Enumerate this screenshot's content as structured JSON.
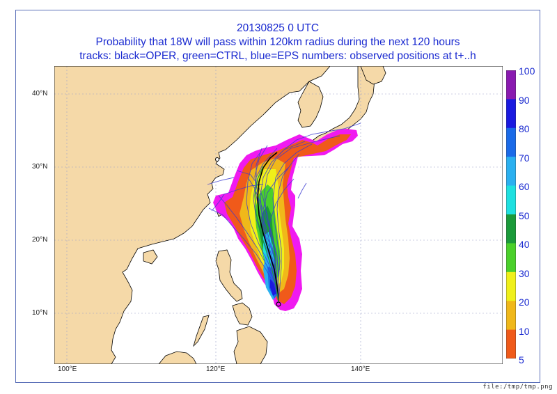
{
  "title": {
    "line1": "20130825 0 UTC",
    "line2": "Probability that 18W will pass within 120km radius during the next 120 hours",
    "line3": "tracks: black=OPER, green=CTRL, blue=EPS numbers: observed positions at t+..h"
  },
  "latitude_labels": [
    "40°N",
    "30°N",
    "20°N",
    "10°N"
  ],
  "longitude_labels": [
    "100°E",
    "120°E",
    "140°E"
  ],
  "colorbar": {
    "labels": [
      "100",
      "90",
      "80",
      "70",
      "60",
      "50",
      "40",
      "30",
      "20",
      "10",
      "5"
    ],
    "colors": [
      "#8a1ab0",
      "#1a1ae0",
      "#1a6ae8",
      "#2ab0f0",
      "#1ee0e0",
      "#1a9a3a",
      "#4ad02a",
      "#f0f01a",
      "#f0b81a",
      "#f05a1a",
      "#f01af0"
    ]
  },
  "colors": {
    "land": "#f5d9a8",
    "sea": "#ffffff",
    "coast": "#000000",
    "eps_track": "#3a3ad0",
    "oper_track": "#000000"
  },
  "footer": "file:/tmp/tmp.png"
}
